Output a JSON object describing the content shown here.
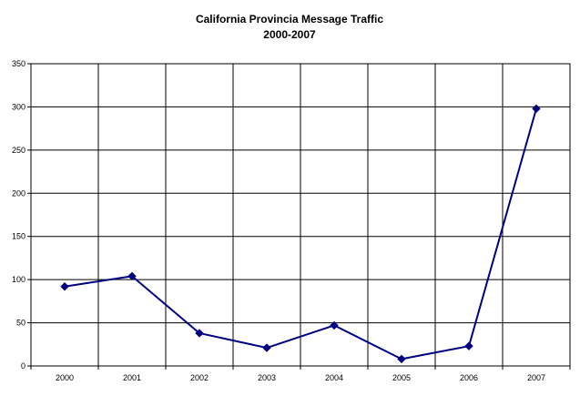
{
  "chart_data": {
    "type": "line",
    "title": "California Provincia Message Traffic",
    "subtitle": "2000-2007",
    "xlabel": "",
    "ylabel": "",
    "categories": [
      "2000",
      "2001",
      "2002",
      "2003",
      "2004",
      "2005",
      "2006",
      "2007"
    ],
    "series": [
      {
        "values": [
          92,
          104,
          38,
          21,
          47,
          8,
          23,
          298
        ],
        "color": "#000080",
        "marker": "diamond"
      }
    ],
    "ylim": [
      0,
      350
    ],
    "yticks": [
      "0",
      "50",
      "100",
      "150",
      "200",
      "250",
      "300",
      "350"
    ],
    "grid": true,
    "legend": "none",
    "colors": {
      "grid": "#000000",
      "line": "#000080"
    }
  }
}
